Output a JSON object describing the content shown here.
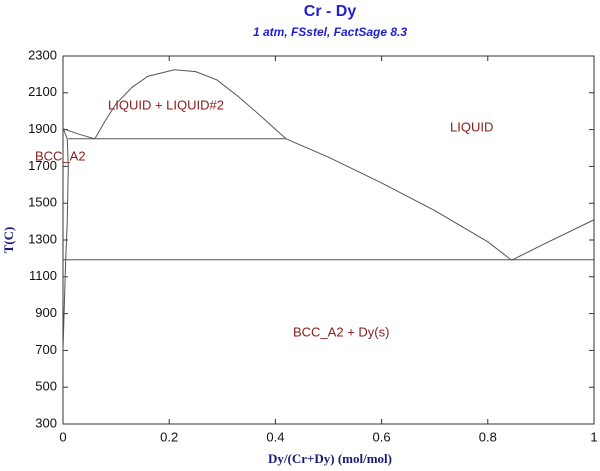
{
  "chart_data": {
    "type": "line",
    "title": "Cr - Dy",
    "subtitle": "1 atm, FSstel, FactSage 8.3",
    "x_label": "Dy/(Cr+Dy) (mol/mol)",
    "y_label": "T(C)",
    "xlim": [
      0,
      1
    ],
    "ylim": [
      300,
      2300
    ],
    "xticks": [
      0,
      0.2,
      0.4,
      0.6,
      0.8,
      1
    ],
    "yticks": [
      300,
      500,
      700,
      900,
      1100,
      1300,
      1500,
      1700,
      1900,
      2100,
      2300
    ],
    "annotations": [
      "LIQUID + LIQUID#2",
      "LIQUID",
      "BCC_A2",
      "BCC_A2 + Dy(s)"
    ],
    "color": "#555555",
    "series": [
      {
        "x": [
          0.06,
          0.08,
          0.1,
          0.13,
          0.16,
          0.21,
          0.25,
          0.29,
          0.33,
          0.37,
          0.42
        ],
        "values": [
          1850,
          1950,
          2040,
          2130,
          2190,
          2225,
          2215,
          2170,
          2080,
          1980,
          1850
        ]
      },
      {
        "x": [
          0.42,
          0.5,
          0.6,
          0.7,
          0.8,
          0.845
        ],
        "values": [
          1850,
          1750,
          1610,
          1460,
          1290,
          1190
        ]
      },
      {
        "x": [
          0.845,
          0.9,
          1
        ],
        "values": [
          1190,
          1270,
          1410
        ]
      },
      {
        "x": [
          0,
          0.03,
          0.06
        ],
        "values": [
          1905,
          1875,
          1850
        ]
      },
      {
        "x": [
          0.01,
          0.42
        ],
        "values": [
          1850,
          1850
        ]
      },
      {
        "x": [
          0,
          1
        ],
        "values": [
          1193,
          1193
        ]
      },
      {
        "x": [
          0,
          0.008,
          0.01,
          0.008,
          0.005,
          0
        ],
        "values": [
          1910,
          1850,
          1700,
          1400,
          1190,
          700
        ]
      }
    ]
  }
}
